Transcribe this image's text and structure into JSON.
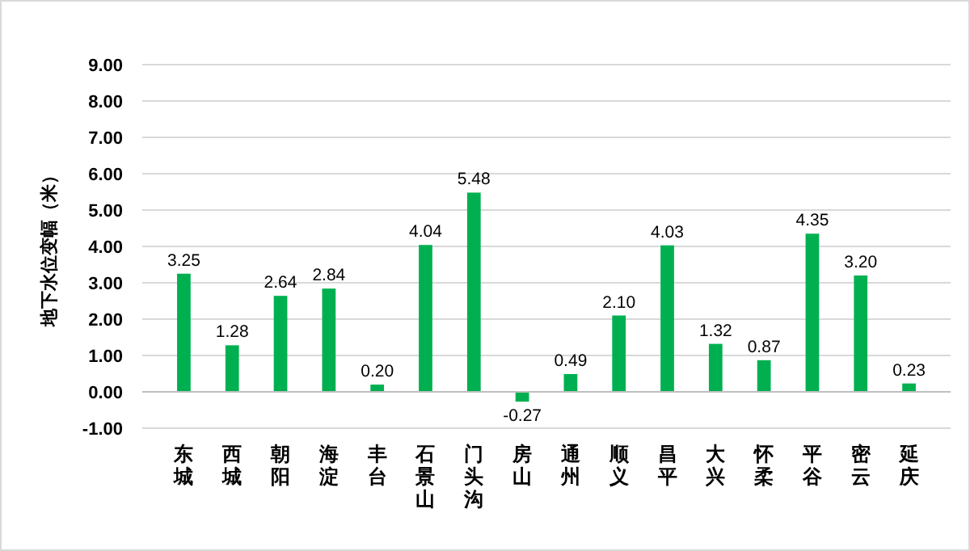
{
  "chart_data": {
    "type": "bar",
    "ylabel": "地下水位变幅（米）",
    "categories": [
      "东城",
      "西城",
      "朝阳",
      "海淀",
      "丰台",
      "石景山",
      "门头沟",
      "房山",
      "通州",
      "顺义",
      "昌平",
      "大兴",
      "怀柔",
      "平谷",
      "密云",
      "延庆"
    ],
    "values": [
      3.25,
      1.28,
      2.64,
      2.84,
      0.2,
      4.04,
      5.48,
      -0.27,
      0.49,
      2.1,
      4.03,
      1.32,
      0.87,
      4.35,
      3.2,
      0.23
    ],
    "value_labels": [
      "3.25",
      "1.28",
      "2.64",
      "2.84",
      "0.20",
      "4.04",
      "5.48",
      "-0.27",
      "0.49",
      "2.10",
      "4.03",
      "1.32",
      "0.87",
      "4.35",
      "3.20",
      "0.23"
    ],
    "color": "#00b050",
    "ylim": [
      -1,
      9
    ],
    "yticks": [
      {
        "value": -1,
        "label": "-1.00"
      },
      {
        "value": 0,
        "label": "0.00"
      },
      {
        "value": 1,
        "label": "1.00"
      },
      {
        "value": 2,
        "label": "2.00"
      },
      {
        "value": 3,
        "label": "3.00"
      },
      {
        "value": 4,
        "label": "4.00"
      },
      {
        "value": 5,
        "label": "5.00"
      },
      {
        "value": 6,
        "label": "6.00"
      },
      {
        "value": 7,
        "label": "7.00"
      },
      {
        "value": 8,
        "label": "8.00"
      },
      {
        "value": 9,
        "label": "9.00"
      }
    ],
    "grid": "y"
  }
}
